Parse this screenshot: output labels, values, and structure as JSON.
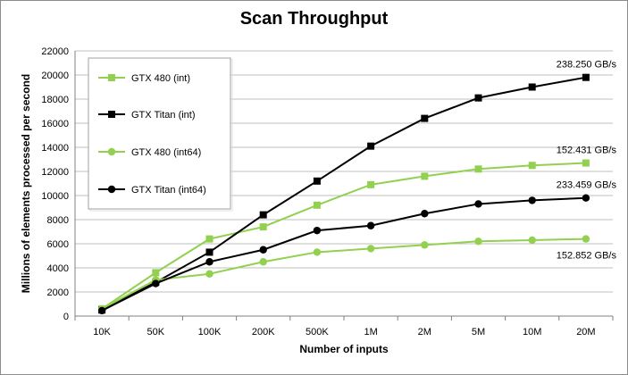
{
  "chart_data": {
    "type": "line",
    "title": "Scan Throughput",
    "xlabel": "Number of inputs",
    "ylabel": "Millions of elements processed per second",
    "categories": [
      "10K",
      "50K",
      "100K",
      "200K",
      "500K",
      "1M",
      "2M",
      "5M",
      "10M",
      "20M"
    ],
    "ylim": [
      0,
      22000
    ],
    "yticks": [
      0,
      2000,
      4000,
      6000,
      8000,
      10000,
      12000,
      14000,
      16000,
      18000,
      20000,
      22000
    ],
    "grid": true,
    "legend": "top-left",
    "series": [
      {
        "name": "GTX 480 (int)",
        "color": "#92d050",
        "marker": "square",
        "values": [
          600,
          3600,
          6400,
          7400,
          9200,
          10900,
          11600,
          12200,
          12500,
          12700
        ]
      },
      {
        "name": "GTX Titan (int)",
        "color": "#000000",
        "marker": "square",
        "values": [
          500,
          2800,
          5300,
          8400,
          11200,
          14100,
          16400,
          18100,
          19000,
          19800
        ]
      },
      {
        "name": "GTX 480 (int64)",
        "color": "#92d050",
        "marker": "circle",
        "values": [
          600,
          3000,
          3500,
          4500,
          5300,
          5600,
          5900,
          6200,
          6300,
          6400
        ]
      },
      {
        "name": "GTX Titan (int64)",
        "color": "#000000",
        "marker": "circle",
        "values": [
          450,
          2700,
          4500,
          5500,
          7100,
          7500,
          8500,
          9300,
          9600,
          9800
        ]
      }
    ],
    "annotations": [
      {
        "text": "238.250 GB/s",
        "series": 1
      },
      {
        "text": "152.431 GB/s",
        "series": 0
      },
      {
        "text": "233.459 GB/s",
        "series": 3
      },
      {
        "text": "152.852 GB/s",
        "series": 2
      }
    ]
  }
}
